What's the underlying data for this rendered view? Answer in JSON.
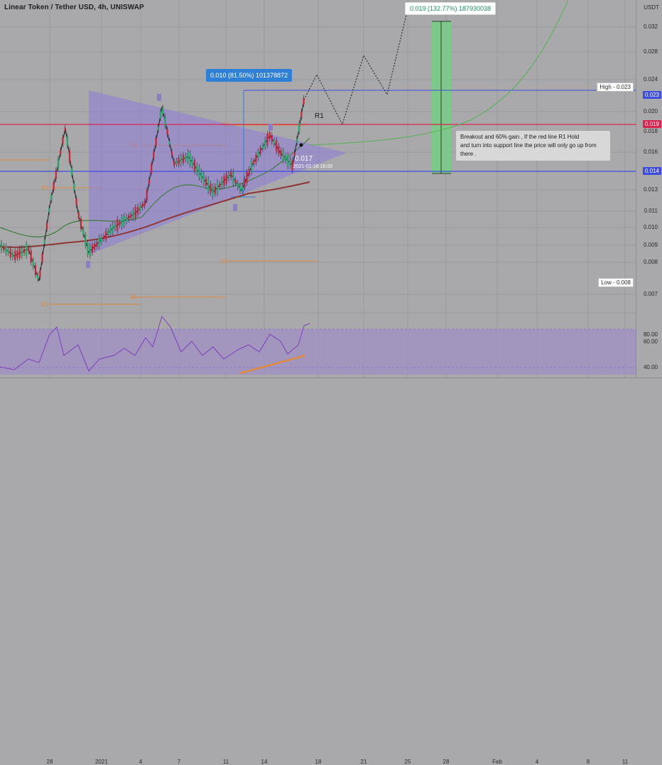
{
  "header": {
    "title": "Linear Token / Tether USD, 4h, UNISWAP",
    "currency": "USDT"
  },
  "price_scale": {
    "ticks": [
      "0.032",
      "0.028",
      "0.024",
      "0.020",
      "0.018",
      "0.016",
      "0.014",
      "0.013",
      "0.011",
      "0.010",
      "0.009",
      "0.008",
      "0.007"
    ],
    "high_label": "High - 0.023",
    "low_label": "Low - 0.008",
    "current_tag": "0.023",
    "red_tag": "0.019",
    "blue_tag": "0.014"
  },
  "rsi_scale": {
    "ticks": [
      "80.00",
      "60.00",
      "40.00"
    ]
  },
  "time_axis": {
    "dates": [
      "28",
      "2021",
      "4",
      "7",
      "11",
      "14",
      "18",
      "21",
      "25",
      "28",
      "Feb",
      "4",
      "8",
      "11"
    ]
  },
  "annotations": {
    "measure_small": "0.010 (81.50%) 101378872",
    "measure_big": "0.019 (132.77%) 187930038",
    "resistance_label": "R1",
    "point_price": "0.017",
    "point_date": "2021-01-16 16:00",
    "note_line1": "Breakout and 60% gain , If the red line R1 Hold",
    "note_line2": "and turn into support line the price will only go up from there .",
    "pivot_labels": [
      "R1",
      "R1",
      "R1",
      "S1",
      "S1",
      "S1",
      "R1"
    ]
  },
  "colors": {
    "background": "#a9a9ac",
    "red_line": "#d9244d",
    "blue_line": "#3d4de0",
    "triangle": "#8e7cd8",
    "green_box": "#6fd47e",
    "rsi_band": "#9f8acb",
    "rsi_line": "#7c3fb9"
  }
}
